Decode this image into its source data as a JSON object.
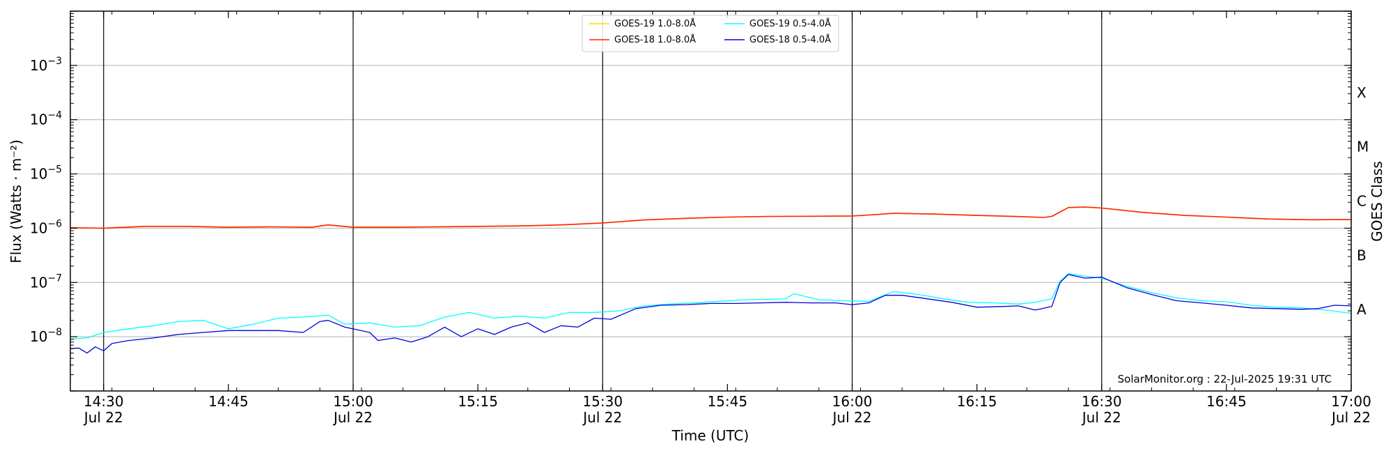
{
  "chart_data": {
    "type": "line",
    "x_range": [
      "14:26",
      "17:00"
    ],
    "y_scale": "log",
    "ylim": [
      1e-09,
      0.01
    ],
    "xlabel": "Time (UTC)",
    "ylabel": "Flux (Watts · m⁻²)",
    "right_axis_label": "GOES Class",
    "x_ticks": [
      {
        "time": "14:30",
        "label": "14:30",
        "date": "Jul 22"
      },
      {
        "time": "14:45",
        "label": "14:45",
        "date": ""
      },
      {
        "time": "15:00",
        "label": "15:00",
        "date": "Jul 22"
      },
      {
        "time": "15:15",
        "label": "15:15",
        "date": ""
      },
      {
        "time": "15:30",
        "label": "15:30",
        "date": "Jul 22"
      },
      {
        "time": "15:45",
        "label": "15:45",
        "date": ""
      },
      {
        "time": "16:00",
        "label": "16:00",
        "date": "Jul 22"
      },
      {
        "time": "16:15",
        "label": "16:15",
        "date": ""
      },
      {
        "time": "16:30",
        "label": "16:30",
        "date": "Jul 22"
      },
      {
        "time": "16:45",
        "label": "16:45",
        "date": ""
      },
      {
        "time": "17:00",
        "label": "17:00",
        "date": "Jul 22"
      }
    ],
    "y_ticks": [
      {
        "exp": -8,
        "label": "10",
        "sup": "−8"
      },
      {
        "exp": -7,
        "label": "10",
        "sup": "−7"
      },
      {
        "exp": -6,
        "label": "10",
        "sup": "−6"
      },
      {
        "exp": -5,
        "label": "10",
        "sup": "−5"
      },
      {
        "exp": -4,
        "label": "10",
        "sup": "−4"
      },
      {
        "exp": -3,
        "label": "10",
        "sup": "−3"
      }
    ],
    "goes_classes": [
      {
        "label": "A",
        "exp": -8
      },
      {
        "label": "B",
        "exp": -7
      },
      {
        "label": "C",
        "exp": -6
      },
      {
        "label": "M",
        "exp": -5
      },
      {
        "label": "X",
        "exp": -4
      }
    ],
    "grid": "horizontal at decades",
    "day_markers": [
      "14:30",
      "15:00",
      "15:30",
      "16:00",
      "16:30"
    ],
    "legend_position": "top-center",
    "legend": [
      {
        "name": "GOES-19 1.0-8.0Å",
        "color": "#ffd700"
      },
      {
        "name": "GOES-18 1.0-8.0Å",
        "color": "#ff2200"
      },
      {
        "name": "GOES-19 0.5-4.0Å",
        "color": "#00ffff"
      },
      {
        "name": "GOES-18 0.5-4.0Å",
        "color": "#0000dd"
      }
    ],
    "credit": "SolarMonitor.org : 22-Jul-2025 19:31 UTC",
    "series": [
      {
        "name": "GOES-19 1.0-8.0Å",
        "color": "#ffd700",
        "x": [
          "14:26",
          "14:30",
          "14:35",
          "14:40",
          "14:45",
          "14:50",
          "14:55",
          "14:57",
          "15:00",
          "15:05",
          "15:10",
          "15:15",
          "15:20",
          "15:25",
          "15:30",
          "15:35",
          "15:40",
          "15:45",
          "15:50",
          "15:55",
          "16:00",
          "16:02",
          "16:05",
          "16:10",
          "16:15",
          "16:20",
          "16:23",
          "16:24",
          "16:26",
          "16:28",
          "16:30",
          "16:35",
          "16:40",
          "16:45",
          "16:50",
          "16:55",
          "17:00"
        ],
        "values": [
          1.02e-06,
          1e-06,
          1.08e-06,
          1.08e-06,
          1.04e-06,
          1.06e-06,
          1.04e-06,
          1.15e-06,
          1.04e-06,
          1.04e-06,
          1.06e-06,
          1.08e-06,
          1.1e-06,
          1.15e-06,
          1.25e-06,
          1.42e-06,
          1.52e-06,
          1.6e-06,
          1.65e-06,
          1.66e-06,
          1.68e-06,
          1.75e-06,
          1.88e-06,
          1.82e-06,
          1.72e-06,
          1.64e-06,
          1.58e-06,
          1.65e-06,
          2.4e-06,
          2.45e-06,
          2.35e-06,
          1.95e-06,
          1.72e-06,
          1.6e-06,
          1.48e-06,
          1.43e-06,
          1.44e-06
        ]
      },
      {
        "name": "GOES-18 1.0-8.0Å",
        "color": "#ff2200",
        "x": [
          "14:26",
          "14:30",
          "14:35",
          "14:40",
          "14:45",
          "14:50",
          "14:55",
          "14:57",
          "15:00",
          "15:05",
          "15:10",
          "15:15",
          "15:20",
          "15:25",
          "15:30",
          "15:35",
          "15:40",
          "15:45",
          "15:50",
          "15:55",
          "16:00",
          "16:02",
          "16:05",
          "16:10",
          "16:15",
          "16:20",
          "16:23",
          "16:24",
          "16:26",
          "16:28",
          "16:30",
          "16:35",
          "16:40",
          "16:45",
          "16:50",
          "16:55",
          "17:00"
        ],
        "values": [
          1.02e-06,
          1e-06,
          1.08e-06,
          1.08e-06,
          1.04e-06,
          1.06e-06,
          1.04e-06,
          1.15e-06,
          1.04e-06,
          1.04e-06,
          1.06e-06,
          1.08e-06,
          1.1e-06,
          1.15e-06,
          1.25e-06,
          1.42e-06,
          1.52e-06,
          1.6e-06,
          1.65e-06,
          1.66e-06,
          1.68e-06,
          1.75e-06,
          1.88e-06,
          1.82e-06,
          1.72e-06,
          1.64e-06,
          1.58e-06,
          1.65e-06,
          2.4e-06,
          2.45e-06,
          2.35e-06,
          1.95e-06,
          1.72e-06,
          1.6e-06,
          1.48e-06,
          1.43e-06,
          1.44e-06
        ]
      },
      {
        "name": "GOES-19 0.5-4.0Å",
        "color": "#00ffff",
        "x": [
          "14:26",
          "14:28",
          "14:30",
          "14:33",
          "14:36",
          "14:39",
          "14:42",
          "14:45",
          "14:48",
          "14:51",
          "14:54",
          "14:57",
          "14:59",
          "15:02",
          "15:05",
          "15:08",
          "15:11",
          "15:14",
          "15:17",
          "15:20",
          "15:23",
          "15:26",
          "15:29",
          "15:32",
          "15:35",
          "15:38",
          "15:41",
          "15:44",
          "15:47",
          "15:50",
          "15:52",
          "15:53",
          "15:56",
          "15:59",
          "16:02",
          "16:05",
          "16:08",
          "16:11",
          "16:14",
          "16:17",
          "16:20",
          "16:22",
          "16:24",
          "16:25",
          "16:26",
          "16:28",
          "16:30",
          "16:33",
          "16:36",
          "16:39",
          "16:42",
          "16:45",
          "16:48",
          "16:51",
          "16:54",
          "16:57",
          "17:00"
        ],
        "values": [
          9e-09,
          9.5e-09,
          1.2e-08,
          1.4e-08,
          1.6e-08,
          1.9e-08,
          2e-08,
          1.4e-08,
          1.7e-08,
          2.2e-08,
          2.3e-08,
          2.5e-08,
          1.7e-08,
          1.8e-08,
          1.5e-08,
          1.6e-08,
          2.3e-08,
          2.8e-08,
          2.2e-08,
          2.4e-08,
          2.2e-08,
          2.8e-08,
          2.8e-08,
          3e-08,
          3.7e-08,
          4e-08,
          4.2e-08,
          4.5e-08,
          4.8e-08,
          4.9e-08,
          5e-08,
          6.2e-08,
          4.8e-08,
          4.6e-08,
          4.5e-08,
          6.8e-08,
          6e-08,
          5e-08,
          4.3e-08,
          4.2e-08,
          4e-08,
          4.3e-08,
          5e-08,
          1.05e-07,
          1.45e-07,
          1.3e-07,
          1.2e-07,
          8.5e-08,
          6.5e-08,
          5.2e-08,
          4.6e-08,
          4.4e-08,
          3.8e-08,
          3.5e-08,
          3.4e-08,
          3.1e-08,
          2.7e-08
        ]
      },
      {
        "name": "GOES-18 0.5-4.0Å",
        "color": "#0000dd",
        "x": [
          "14:26",
          "14:27",
          "14:28",
          "14:29",
          "14:30",
          "14:31",
          "14:33",
          "14:36",
          "14:39",
          "14:42",
          "14:45",
          "14:48",
          "14:51",
          "14:54",
          "14:56",
          "14:57",
          "14:59",
          "15:02",
          "15:03",
          "15:05",
          "15:07",
          "15:09",
          "15:11",
          "15:13",
          "15:15",
          "15:17",
          "15:19",
          "15:21",
          "15:23",
          "15:25",
          "15:27",
          "15:29",
          "15:31",
          "15:34",
          "15:37",
          "15:40",
          "15:43",
          "15:46",
          "15:49",
          "15:52",
          "15:55",
          "15:58",
          "16:00",
          "16:02",
          "16:04",
          "16:06",
          "16:09",
          "16:12",
          "16:15",
          "16:18",
          "16:20",
          "16:22",
          "16:24",
          "16:25",
          "16:26",
          "16:28",
          "16:30",
          "16:33",
          "16:36",
          "16:39",
          "16:42",
          "16:45",
          "16:48",
          "16:51",
          "16:54",
          "16:56",
          "16:58",
          "17:00"
        ],
        "values": [
          6e-09,
          6.2e-09,
          5e-09,
          6.5e-09,
          5.5e-09,
          7.5e-09,
          8.5e-09,
          9.5e-09,
          1.1e-08,
          1.2e-08,
          1.3e-08,
          1.3e-08,
          1.3e-08,
          1.2e-08,
          1.9e-08,
          2e-08,
          1.5e-08,
          1.2e-08,
          8.5e-09,
          9.5e-09,
          8e-09,
          1e-08,
          1.5e-08,
          1e-08,
          1.4e-08,
          1.1e-08,
          1.5e-08,
          1.8e-08,
          1.2e-08,
          1.6e-08,
          1.5e-08,
          2.2e-08,
          2.1e-08,
          3.3e-08,
          3.8e-08,
          3.9e-08,
          4.1e-08,
          4.1e-08,
          4.2e-08,
          4.3e-08,
          4.2e-08,
          4.2e-08,
          3.9e-08,
          4.2e-08,
          5.8e-08,
          5.8e-08,
          5e-08,
          4.3e-08,
          3.5e-08,
          3.6e-08,
          3.7e-08,
          3.1e-08,
          3.6e-08,
          1e-07,
          1.4e-07,
          1.2e-07,
          1.25e-07,
          8e-08,
          6e-08,
          4.6e-08,
          4.2e-08,
          3.8e-08,
          3.4e-08,
          3.3e-08,
          3.2e-08,
          3.3e-08,
          3.8e-08,
          3.7e-08
        ]
      }
    ]
  }
}
